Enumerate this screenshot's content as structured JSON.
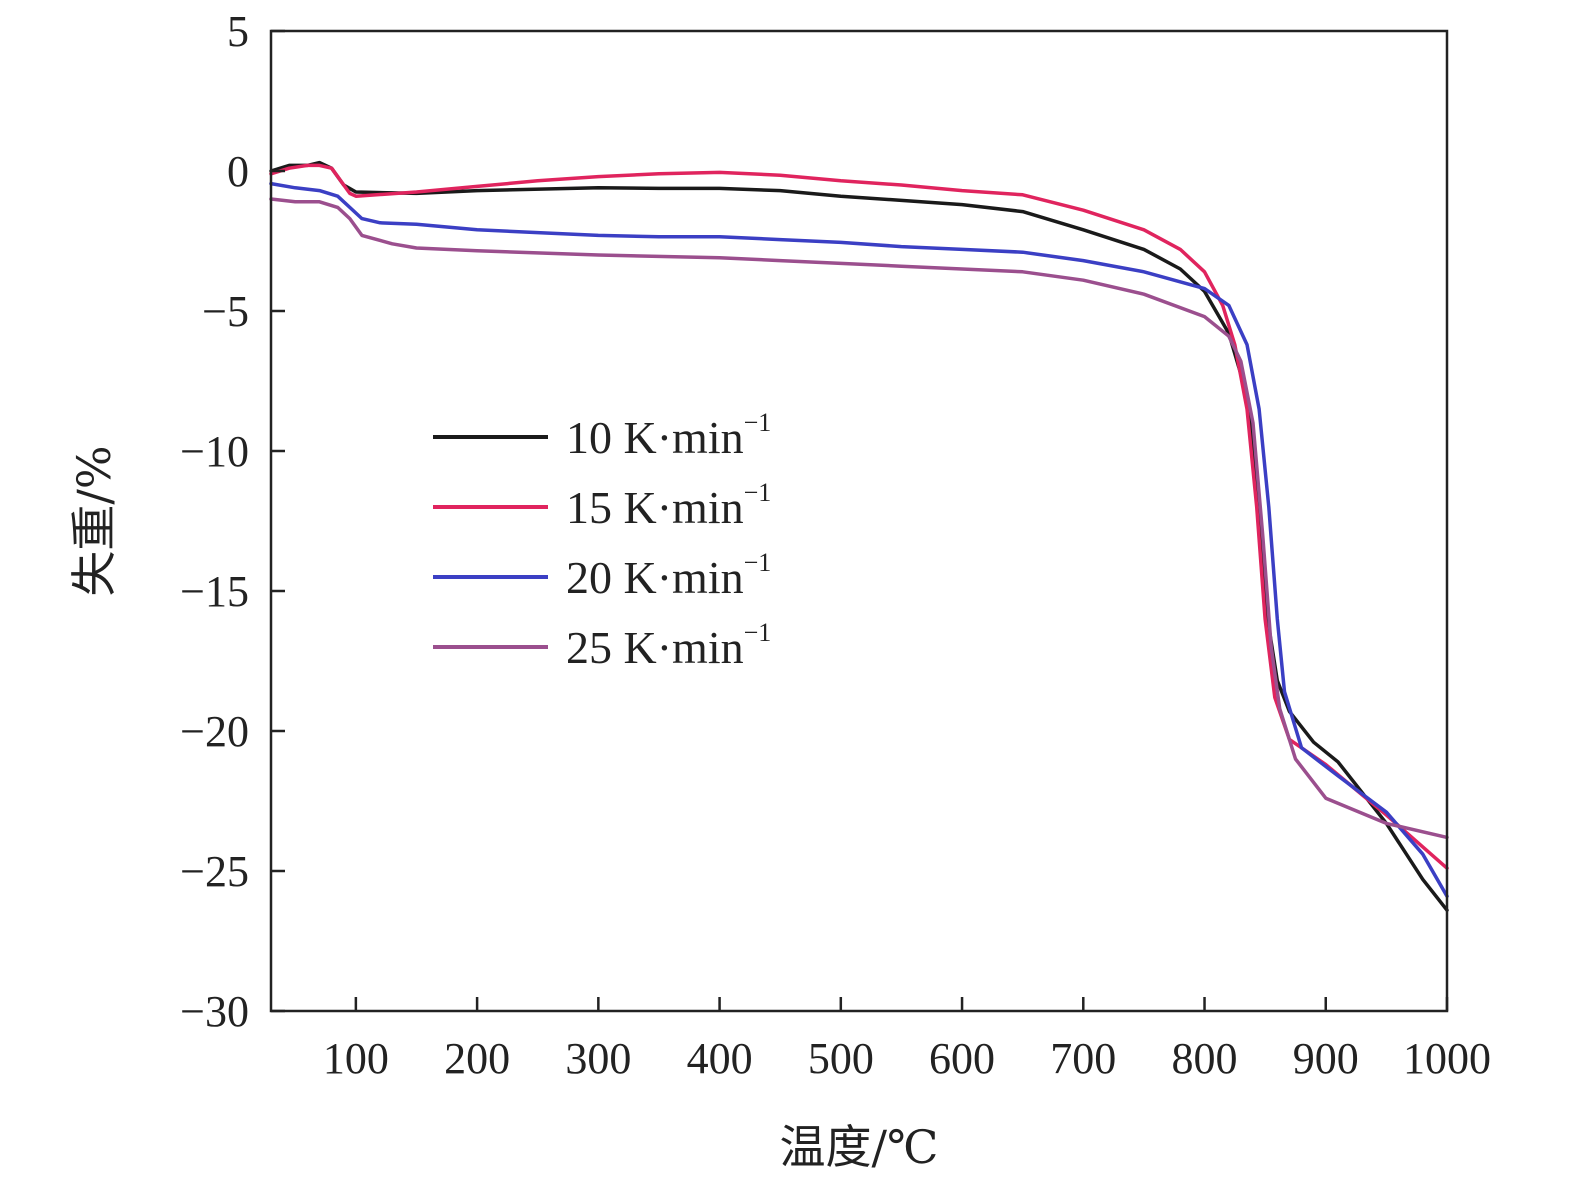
{
  "chart_data": {
    "type": "line",
    "title": "",
    "xlabel": "温度/℃",
    "ylabel": "失重/%",
    "xlim": [
      30,
      1000
    ],
    "ylim": [
      -30,
      5
    ],
    "x_ticks": [
      100,
      200,
      300,
      400,
      500,
      600,
      700,
      800,
      900,
      1000
    ],
    "y_ticks": [
      5,
      0,
      -5,
      -10,
      -15,
      -20,
      -25,
      -30
    ],
    "x_tick_labels": [
      "100",
      "200",
      "300",
      "400",
      "500",
      "600",
      "700",
      "800",
      "900",
      "1000"
    ],
    "y_tick_labels": [
      "5",
      "0",
      "−5",
      "−10",
      "−15",
      "−20",
      "−25",
      "−30"
    ],
    "grid": false,
    "legend_position": "center-left",
    "series": [
      {
        "name": "10 K·min",
        "name_sup": "−1",
        "color": "#1a1a1a",
        "points": [
          [
            30,
            0.0
          ],
          [
            45,
            0.2
          ],
          [
            60,
            0.2
          ],
          [
            70,
            0.3
          ],
          [
            80,
            0.1
          ],
          [
            90,
            -0.5
          ],
          [
            100,
            -0.75
          ],
          [
            150,
            -0.8
          ],
          [
            200,
            -0.7
          ],
          [
            300,
            -0.6
          ],
          [
            350,
            -0.62
          ],
          [
            400,
            -0.62
          ],
          [
            450,
            -0.7
          ],
          [
            500,
            -0.9
          ],
          [
            550,
            -1.05
          ],
          [
            600,
            -1.2
          ],
          [
            650,
            -1.45
          ],
          [
            700,
            -2.1
          ],
          [
            750,
            -2.8
          ],
          [
            780,
            -3.5
          ],
          [
            800,
            -4.3
          ],
          [
            820,
            -5.8
          ],
          [
            835,
            -8.0
          ],
          [
            845,
            -12.0
          ],
          [
            852,
            -16.0
          ],
          [
            860,
            -18.2
          ],
          [
            870,
            -19.3
          ],
          [
            890,
            -20.4
          ],
          [
            910,
            -21.1
          ],
          [
            950,
            -23.3
          ],
          [
            980,
            -25.3
          ],
          [
            1000,
            -26.4
          ]
        ]
      },
      {
        "name": "15 K·min",
        "name_sup": "−1",
        "color": "#e0245e",
        "points": [
          [
            30,
            -0.1
          ],
          [
            45,
            0.1
          ],
          [
            60,
            0.2
          ],
          [
            70,
            0.2
          ],
          [
            80,
            0.1
          ],
          [
            95,
            -0.8
          ],
          [
            100,
            -0.9
          ],
          [
            150,
            -0.75
          ],
          [
            200,
            -0.55
          ],
          [
            250,
            -0.35
          ],
          [
            300,
            -0.2
          ],
          [
            350,
            -0.1
          ],
          [
            400,
            -0.05
          ],
          [
            450,
            -0.15
          ],
          [
            500,
            -0.35
          ],
          [
            550,
            -0.5
          ],
          [
            600,
            -0.7
          ],
          [
            650,
            -0.85
          ],
          [
            700,
            -1.4
          ],
          [
            750,
            -2.1
          ],
          [
            780,
            -2.8
          ],
          [
            800,
            -3.6
          ],
          [
            815,
            -4.8
          ],
          [
            825,
            -6.2
          ],
          [
            835,
            -8.5
          ],
          [
            843,
            -12.0
          ],
          [
            850,
            -16.0
          ],
          [
            858,
            -18.8
          ],
          [
            870,
            -20.3
          ],
          [
            900,
            -21.2
          ],
          [
            950,
            -23.0
          ],
          [
            1000,
            -24.9
          ]
        ]
      },
      {
        "name": "20 K·min",
        "name_sup": "−1",
        "color": "#3b3fc4",
        "points": [
          [
            30,
            -0.45
          ],
          [
            50,
            -0.6
          ],
          [
            70,
            -0.7
          ],
          [
            85,
            -0.9
          ],
          [
            95,
            -1.3
          ],
          [
            105,
            -1.7
          ],
          [
            120,
            -1.85
          ],
          [
            150,
            -1.9
          ],
          [
            200,
            -2.1
          ],
          [
            250,
            -2.2
          ],
          [
            300,
            -2.3
          ],
          [
            350,
            -2.35
          ],
          [
            400,
            -2.35
          ],
          [
            450,
            -2.45
          ],
          [
            500,
            -2.55
          ],
          [
            550,
            -2.7
          ],
          [
            600,
            -2.8
          ],
          [
            650,
            -2.9
          ],
          [
            700,
            -3.2
          ],
          [
            750,
            -3.6
          ],
          [
            800,
            -4.2
          ],
          [
            820,
            -4.8
          ],
          [
            835,
            -6.2
          ],
          [
            845,
            -8.5
          ],
          [
            853,
            -12.0
          ],
          [
            860,
            -16.0
          ],
          [
            866,
            -18.6
          ],
          [
            880,
            -20.6
          ],
          [
            910,
            -21.6
          ],
          [
            950,
            -22.9
          ],
          [
            980,
            -24.4
          ],
          [
            1000,
            -25.9
          ]
        ]
      },
      {
        "name": "25 K·min",
        "name_sup": "−1",
        "color": "#9b4f8e",
        "points": [
          [
            30,
            -1.0
          ],
          [
            50,
            -1.1
          ],
          [
            70,
            -1.1
          ],
          [
            85,
            -1.3
          ],
          [
            95,
            -1.7
          ],
          [
            105,
            -2.3
          ],
          [
            130,
            -2.6
          ],
          [
            150,
            -2.75
          ],
          [
            200,
            -2.85
          ],
          [
            300,
            -3.0
          ],
          [
            400,
            -3.1
          ],
          [
            450,
            -3.2
          ],
          [
            500,
            -3.3
          ],
          [
            550,
            -3.4
          ],
          [
            600,
            -3.5
          ],
          [
            650,
            -3.6
          ],
          [
            700,
            -3.9
          ],
          [
            750,
            -4.4
          ],
          [
            800,
            -5.2
          ],
          [
            820,
            -5.9
          ],
          [
            830,
            -6.8
          ],
          [
            840,
            -9.0
          ],
          [
            848,
            -13.0
          ],
          [
            855,
            -17.0
          ],
          [
            862,
            -19.2
          ],
          [
            875,
            -21.0
          ],
          [
            900,
            -22.4
          ],
          [
            950,
            -23.3
          ],
          [
            1000,
            -23.8
          ]
        ]
      }
    ]
  }
}
